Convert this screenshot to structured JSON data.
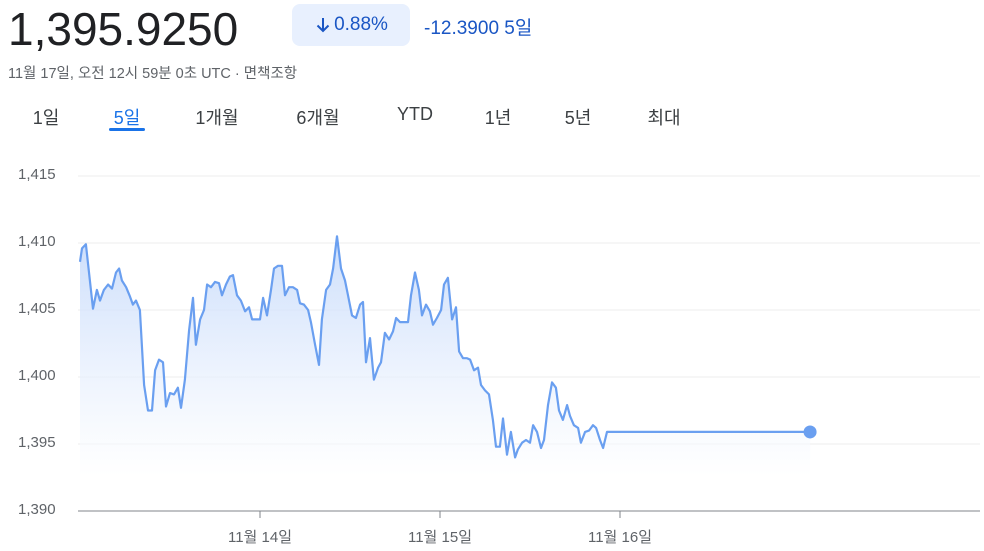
{
  "header": {
    "price": "1,395.9250",
    "change_percent": "0.88%",
    "change_value": "-12.3900",
    "change_period": "5일",
    "timestamp": "11월 17일, 오전 12시 59분 0초 UTC · 면책조항"
  },
  "tabs": {
    "items": [
      "1일",
      "5일",
      "1개월",
      "6개월",
      "YTD",
      "1년",
      "5년",
      "최대"
    ],
    "active": 1
  },
  "chart_data": {
    "type": "line",
    "grid": true,
    "xlim": [
      0,
      5
    ],
    "xticks": [
      {
        "value": 1,
        "label": "11월 14일"
      },
      {
        "value": 2,
        "label": "11월 15일"
      },
      {
        "value": 3,
        "label": "11월 16일"
      }
    ],
    "ylim": [
      1390,
      1415
    ],
    "yticks": [
      {
        "value": 1390,
        "label": "1,390"
      },
      {
        "value": 1395,
        "label": "1,395"
      },
      {
        "value": 1400,
        "label": "1,400"
      },
      {
        "value": 1405,
        "label": "1,405"
      },
      {
        "value": 1410,
        "label": "1,410"
      },
      {
        "value": 1415,
        "label": "1,415"
      }
    ],
    "series": [
      {
        "color": "#6a9ff0",
        "x": [
          0,
          0.011,
          0.033,
          0.072,
          0.094,
          0.111,
          0.133,
          0.156,
          0.178,
          0.2,
          0.217,
          0.233,
          0.256,
          0.278,
          0.294,
          0.311,
          0.333,
          0.356,
          0.378,
          0.4,
          0.417,
          0.439,
          0.461,
          0.478,
          0.5,
          0.522,
          0.544,
          0.561,
          0.583,
          0.606,
          0.628,
          0.644,
          0.667,
          0.689,
          0.706,
          0.728,
          0.75,
          0.772,
          0.789,
          0.811,
          0.833,
          0.85,
          0.872,
          0.894,
          0.917,
          0.939,
          0.956,
          0.978,
          1.0,
          1.017,
          1.039,
          1.061,
          1.078,
          1.1,
          1.122,
          1.139,
          1.161,
          1.183,
          1.206,
          1.222,
          1.244,
          1.267,
          1.283,
          1.306,
          1.328,
          1.344,
          1.367,
          1.389,
          1.406,
          1.428,
          1.45,
          1.472,
          1.489,
          1.511,
          1.533,
          1.556,
          1.572,
          1.589,
          1.611,
          1.633,
          1.656,
          1.672,
          1.694,
          1.717,
          1.739,
          1.756,
          1.778,
          1.8,
          1.822,
          1.839,
          1.861,
          1.883,
          1.9,
          1.922,
          1.944,
          1.961,
          1.983,
          2.006,
          2.022,
          2.044,
          2.067,
          2.089,
          2.106,
          2.128,
          2.15,
          2.167,
          2.189,
          2.211,
          2.228,
          2.25,
          2.272,
          2.294,
          2.311,
          2.333,
          2.35,
          2.372,
          2.394,
          2.417,
          2.433,
          2.456,
          2.478,
          2.5,
          2.517,
          2.539,
          2.561,
          2.578,
          2.6,
          2.622,
          2.644,
          2.661,
          2.683,
          2.706,
          2.722,
          2.744,
          2.767,
          2.783,
          2.806,
          2.828,
          2.85,
          2.867,
          2.889,
          2.906,
          2.928,
          4.056
        ],
        "values": [
          1408.6,
          1409.6,
          1409.9,
          1405.1,
          1406.5,
          1405.7,
          1406.5,
          1406.9,
          1406.6,
          1407.8,
          1408.1,
          1407.2,
          1406.7,
          1406.0,
          1405.4,
          1405.7,
          1405.0,
          1399.4,
          1397.5,
          1397.5,
          1400.5,
          1401.3,
          1401.1,
          1397.8,
          1398.8,
          1398.7,
          1399.2,
          1397.7,
          1399.8,
          1403.5,
          1405.9,
          1402.4,
          1404.3,
          1405.0,
          1406.9,
          1406.7,
          1407.1,
          1407.0,
          1406.1,
          1406.9,
          1407.5,
          1407.6,
          1406.1,
          1405.7,
          1404.9,
          1405.2,
          1404.3,
          1404.3,
          1404.3,
          1405.9,
          1404.6,
          1406.5,
          1408.1,
          1408.3,
          1408.3,
          1406.1,
          1406.7,
          1406.7,
          1406.5,
          1405.5,
          1405.4,
          1405.0,
          1404.1,
          1402.4,
          1400.9,
          1404.3,
          1406.5,
          1406.9,
          1408.1,
          1410.5,
          1408.1,
          1407.2,
          1406.1,
          1404.6,
          1404.4,
          1405.4,
          1405.6,
          1401.1,
          1402.9,
          1399.8,
          1400.7,
          1401.1,
          1403.3,
          1402.8,
          1403.4,
          1404.4,
          1404.1,
          1404.1,
          1404.1,
          1406.1,
          1407.8,
          1406.5,
          1404.6,
          1405.4,
          1404.9,
          1403.9,
          1404.4,
          1405.0,
          1406.9,
          1407.4,
          1404.3,
          1405.2,
          1401.9,
          1401.4,
          1401.4,
          1401.3,
          1400.5,
          1400.7,
          1399.4,
          1399.0,
          1398.7,
          1396.8,
          1394.8,
          1394.8,
          1396.9,
          1394.2,
          1395.9,
          1394.0,
          1394.6,
          1395.1,
          1395.3,
          1395.1,
          1396.4,
          1395.9,
          1394.7,
          1395.3,
          1397.9,
          1399.6,
          1399.2,
          1397.5,
          1396.8,
          1397.9,
          1397.1,
          1396.4,
          1396.2,
          1395.1,
          1395.9,
          1396.0,
          1396.4,
          1396.2,
          1395.3,
          1394.7,
          1395.9,
          1395.9
        ]
      }
    ]
  }
}
